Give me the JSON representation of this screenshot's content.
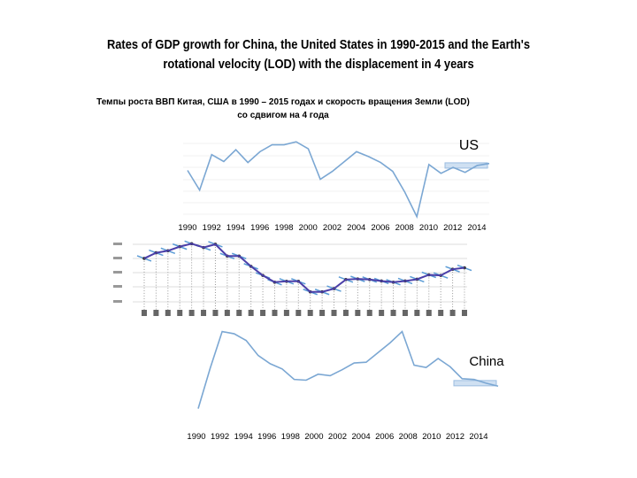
{
  "title": {
    "line1": "Rates of  GDP growth for   China, the United States in 1990-2015 and the Earth's",
    "line2": "rotational velocity (LOD) with the  displacement in 4 years"
  },
  "subtitle": {
    "line1": "Темпы роста ВВП Китая,  США в 1990 – 2015 годах  и скорость вращения Земли (LOD)",
    "line2": "со сдвигом на 4 года"
  },
  "chart_data": [
    {
      "type": "line",
      "name": "US",
      "label": "US",
      "color": "#7ba7d3",
      "x": [
        1990,
        1991,
        1992,
        1993,
        1994,
        1995,
        1996,
        1997,
        1998,
        1999,
        2000,
        2001,
        2002,
        2003,
        2004,
        2005,
        2006,
        2007,
        2008,
        2009,
        2010,
        2011,
        2012,
        2013,
        2014,
        2015
      ],
      "values": [
        1.9,
        -0.1,
        3.5,
        2.8,
        4.0,
        2.7,
        3.8,
        4.5,
        4.5,
        4.8,
        4.1,
        1.0,
        1.8,
        2.8,
        3.8,
        3.3,
        2.7,
        1.8,
        -0.3,
        -2.8,
        2.5,
        1.6,
        2.2,
        1.7,
        2.4,
        2.6
      ],
      "xtick_labels": [
        "1990",
        "1992",
        "1994",
        "1996",
        "1998",
        "2000",
        "2002",
        "2004",
        "2006",
        "2008",
        "2010",
        "2012",
        "2014"
      ],
      "ylim": [
        -3,
        5
      ]
    },
    {
      "type": "line",
      "name": "LOD (shifted 4 years)",
      "color": "#4b3fa8",
      "values": [
        1.6,
        1.79,
        1.86,
        2.0,
        2.1,
        1.97,
        2.08,
        1.68,
        1.68,
        1.33,
        1.02,
        0.79,
        0.82,
        0.82,
        0.46,
        0.46,
        0.57,
        0.88,
        0.9,
        0.88,
        0.83,
        0.79,
        0.83,
        0.89,
        1.04,
        1.02,
        1.23,
        1.28
      ],
      "ylim": [
        0,
        2.2
      ]
    },
    {
      "type": "line",
      "name": "China",
      "label": "China",
      "color": "#7ba7d3",
      "x": [
        1990,
        1991,
        1992,
        1993,
        1994,
        1995,
        1996,
        1997,
        1998,
        1999,
        2000,
        2001,
        2002,
        2003,
        2004,
        2005,
        2006,
        2007,
        2008,
        2009,
        2010,
        2011,
        2012,
        2013,
        2014,
        2015
      ],
      "values": [
        3.9,
        9.3,
        14.2,
        13.9,
        13.0,
        11.0,
        9.9,
        9.2,
        7.8,
        7.7,
        8.5,
        8.3,
        9.1,
        10.0,
        10.1,
        11.4,
        12.7,
        14.2,
        9.7,
        9.4,
        10.6,
        9.5,
        7.9,
        7.8,
        7.3,
        6.9
      ],
      "xtick_labels": [
        "1990",
        "1992",
        "1994",
        "1996",
        "1998",
        "2000",
        "2002",
        "2004",
        "2006",
        "2008",
        "2010",
        "2012",
        "2014"
      ],
      "ylim": [
        3.5,
        14.5
      ]
    }
  ]
}
